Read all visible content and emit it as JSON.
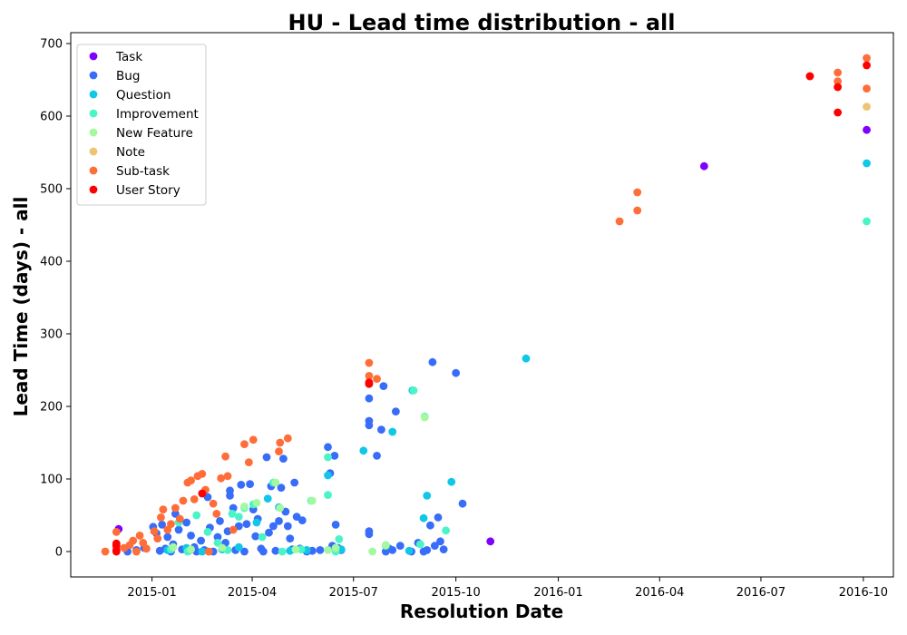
{
  "chart_data": {
    "type": "scatter",
    "title": "HU - Lead time distribution - all",
    "xlabel": "Resolution Date",
    "ylabel": "Lead Time (days) - all",
    "x_type": "date",
    "xlim": [
      "2014-10-20",
      "2016-10-28"
    ],
    "ylim": [
      -35,
      715
    ],
    "x_ticks": [
      "2015-01-01",
      "2015-04-01",
      "2015-07-01",
      "2015-10-01",
      "2016-01-01",
      "2016-04-01",
      "2016-07-01",
      "2016-10-01"
    ],
    "x_tick_labels": [
      "2015-01",
      "2015-04",
      "2015-07",
      "2015-10",
      "2016-01",
      "2016-04",
      "2016-07",
      "2016-10"
    ],
    "y_ticks": [
      0,
      100,
      200,
      300,
      400,
      500,
      600,
      700
    ],
    "y_tick_labels": [
      "0",
      "100",
      "200",
      "300",
      "400",
      "500",
      "600",
      "700"
    ],
    "grid": false,
    "legend_position": "top-left",
    "series": [
      {
        "name": "Task",
        "color": "#8000ff",
        "points": [
          [
            "2014-12-02",
            31
          ],
          [
            "2015-11-01",
            14
          ],
          [
            "2016-05-11",
            531
          ],
          [
            "2016-10-04",
            581
          ]
        ]
      },
      {
        "name": "Bug",
        "color": "#386df9",
        "points": [
          [
            "2014-12-10",
            0
          ],
          [
            "2014-12-18",
            2
          ],
          [
            "2014-12-25",
            5
          ],
          [
            "2015-01-02",
            34
          ],
          [
            "2015-01-05",
            25
          ],
          [
            "2015-01-08",
            1
          ],
          [
            "2015-01-10",
            37
          ],
          [
            "2015-01-13",
            4
          ],
          [
            "2015-01-15",
            20
          ],
          [
            "2015-01-18",
            0
          ],
          [
            "2015-01-20",
            10
          ],
          [
            "2015-01-22",
            52
          ],
          [
            "2015-01-25",
            30
          ],
          [
            "2015-01-28",
            3
          ],
          [
            "2015-02-01",
            40
          ],
          [
            "2015-02-03",
            1
          ],
          [
            "2015-02-05",
            22
          ],
          [
            "2015-02-08",
            6
          ],
          [
            "2015-02-10",
            0
          ],
          [
            "2015-02-14",
            15
          ],
          [
            "2015-02-17",
            2
          ],
          [
            "2015-02-20",
            75
          ],
          [
            "2015-02-22",
            33
          ],
          [
            "2015-02-25",
            0
          ],
          [
            "2015-03-01",
            20
          ],
          [
            "2015-03-03",
            42
          ],
          [
            "2015-03-06",
            5
          ],
          [
            "2015-03-08",
            12
          ],
          [
            "2015-03-10",
            28
          ],
          [
            "2015-03-12",
            77
          ],
          [
            "2015-03-12",
            84
          ],
          [
            "2015-03-15",
            60
          ],
          [
            "2015-03-17",
            2
          ],
          [
            "2015-03-20",
            35
          ],
          [
            "2015-03-22",
            92
          ],
          [
            "2015-03-25",
            0
          ],
          [
            "2015-03-27",
            38
          ],
          [
            "2015-03-30",
            93
          ],
          [
            "2015-04-02",
            58
          ],
          [
            "2015-04-04",
            21
          ],
          [
            "2015-04-06",
            45
          ],
          [
            "2015-04-09",
            4
          ],
          [
            "2015-04-11",
            0
          ],
          [
            "2015-04-14",
            130
          ],
          [
            "2015-04-16",
            26
          ],
          [
            "2015-04-18",
            90
          ],
          [
            "2015-04-20",
            35
          ],
          [
            "2015-04-22",
            1
          ],
          [
            "2015-04-25",
            42
          ],
          [
            "2015-04-27",
            88
          ],
          [
            "2015-04-29",
            128
          ],
          [
            "2015-05-01",
            55
          ],
          [
            "2015-05-03",
            35
          ],
          [
            "2015-05-05",
            18
          ],
          [
            "2015-05-07",
            3
          ],
          [
            "2015-05-09",
            95
          ],
          [
            "2015-05-11",
            48
          ],
          [
            "2015-05-14",
            4
          ],
          [
            "2015-05-16",
            43
          ],
          [
            "2015-05-20",
            0
          ],
          [
            "2015-05-25",
            1
          ],
          [
            "2015-06-01",
            2
          ],
          [
            "2015-06-08",
            144
          ],
          [
            "2015-06-10",
            108
          ],
          [
            "2015-06-12",
            8
          ],
          [
            "2015-06-14",
            132
          ],
          [
            "2015-06-15",
            37
          ],
          [
            "2015-06-17",
            5
          ],
          [
            "2015-06-20",
            2
          ],
          [
            "2015-07-15",
            28
          ],
          [
            "2015-07-15",
            24
          ],
          [
            "2015-07-15",
            180
          ],
          [
            "2015-07-15",
            174
          ],
          [
            "2015-07-15",
            211
          ],
          [
            "2015-07-22",
            132
          ],
          [
            "2015-07-26",
            168
          ],
          [
            "2015-07-28",
            228
          ],
          [
            "2015-07-30",
            0
          ],
          [
            "2015-08-02",
            4
          ],
          [
            "2015-08-05",
            2
          ],
          [
            "2015-08-08",
            193
          ],
          [
            "2015-08-12",
            8
          ],
          [
            "2015-08-22",
            0
          ],
          [
            "2015-08-28",
            12
          ],
          [
            "2015-09-02",
            0
          ],
          [
            "2015-09-05",
            2
          ],
          [
            "2015-09-08",
            36
          ],
          [
            "2015-09-10",
            261
          ],
          [
            "2015-09-12",
            8
          ],
          [
            "2015-09-15",
            47
          ],
          [
            "2015-09-17",
            14
          ],
          [
            "2015-09-20",
            3
          ],
          [
            "2015-10-01",
            246
          ],
          [
            "2015-10-07",
            66
          ]
        ]
      },
      {
        "name": "Question",
        "color": "#11c7e8",
        "points": [
          [
            "2015-01-15",
            2
          ],
          [
            "2015-02-01",
            5
          ],
          [
            "2015-02-15",
            0
          ],
          [
            "2015-03-05",
            3
          ],
          [
            "2015-03-20",
            6
          ],
          [
            "2015-04-05",
            40
          ],
          [
            "2015-04-15",
            73
          ],
          [
            "2015-04-25",
            61
          ],
          [
            "2015-05-05",
            1
          ],
          [
            "2015-05-20",
            2
          ],
          [
            "2015-06-08",
            105
          ],
          [
            "2015-06-20",
            3
          ],
          [
            "2015-07-10",
            139
          ],
          [
            "2015-08-05",
            165
          ],
          [
            "2015-08-20",
            1
          ],
          [
            "2015-08-23",
            222
          ],
          [
            "2015-09-02",
            46
          ],
          [
            "2015-09-05",
            77
          ],
          [
            "2015-09-27",
            96
          ],
          [
            "2015-12-03",
            266
          ],
          [
            "2016-10-04",
            535
          ]
        ]
      },
      {
        "name": "Improvement",
        "color": "#4bf4c8",
        "points": [
          [
            "2015-01-18",
            3
          ],
          [
            "2015-01-25",
            40
          ],
          [
            "2015-02-02",
            0
          ],
          [
            "2015-02-10",
            50
          ],
          [
            "2015-02-20",
            27
          ],
          [
            "2015-03-01",
            12
          ],
          [
            "2015-03-10",
            2
          ],
          [
            "2015-03-14",
            52
          ],
          [
            "2015-03-20",
            48
          ],
          [
            "2015-03-25",
            60
          ],
          [
            "2015-04-02",
            65
          ],
          [
            "2015-04-10",
            20
          ],
          [
            "2015-04-20",
            95
          ],
          [
            "2015-04-28",
            0
          ],
          [
            "2015-05-15",
            3
          ],
          [
            "2015-05-24",
            70
          ],
          [
            "2015-06-08",
            130
          ],
          [
            "2015-06-08",
            78
          ],
          [
            "2015-06-15",
            0
          ],
          [
            "2015-06-18",
            17
          ],
          [
            "2015-07-30",
            8
          ],
          [
            "2015-08-24",
            222
          ],
          [
            "2015-08-30",
            10
          ],
          [
            "2015-09-03",
            186
          ],
          [
            "2015-09-22",
            29
          ],
          [
            "2016-10-04",
            455
          ]
        ]
      },
      {
        "name": "New Feature",
        "color": "#a4f89f",
        "points": [
          [
            "2015-01-20",
            6
          ],
          [
            "2015-02-05",
            3
          ],
          [
            "2015-03-05",
            5
          ],
          [
            "2015-03-25",
            62
          ],
          [
            "2015-04-05",
            67
          ],
          [
            "2015-04-22",
            95
          ],
          [
            "2015-04-26",
            60
          ],
          [
            "2015-05-10",
            3
          ],
          [
            "2015-05-25",
            70
          ],
          [
            "2015-06-08",
            2
          ],
          [
            "2015-06-15",
            5
          ],
          [
            "2015-07-18",
            0
          ],
          [
            "2015-07-30",
            9
          ],
          [
            "2015-09-03",
            185
          ]
        ]
      },
      {
        "name": "Note",
        "color": "#edc472",
        "points": [
          [
            "2016-10-04",
            613
          ]
        ]
      },
      {
        "name": "Sub-task",
        "color": "#ff6d38",
        "points": [
          [
            "2014-11-20",
            0
          ],
          [
            "2014-11-30",
            27
          ],
          [
            "2014-12-07",
            5
          ],
          [
            "2014-12-12",
            9
          ],
          [
            "2014-12-15",
            15
          ],
          [
            "2014-12-18",
            0
          ],
          [
            "2014-12-21",
            22
          ],
          [
            "2014-12-24",
            12
          ],
          [
            "2014-12-27",
            4
          ],
          [
            "2015-01-03",
            28
          ],
          [
            "2015-01-06",
            18
          ],
          [
            "2015-01-09",
            47
          ],
          [
            "2015-01-11",
            58
          ],
          [
            "2015-01-15",
            30
          ],
          [
            "2015-01-18",
            38
          ],
          [
            "2015-01-22",
            60
          ],
          [
            "2015-01-26",
            45
          ],
          [
            "2015-01-29",
            70
          ],
          [
            "2015-02-02",
            95
          ],
          [
            "2015-02-05",
            98
          ],
          [
            "2015-02-08",
            72
          ],
          [
            "2015-02-11",
            104
          ],
          [
            "2015-02-15",
            107
          ],
          [
            "2015-02-18",
            85
          ],
          [
            "2015-02-21",
            0
          ],
          [
            "2015-02-25",
            66
          ],
          [
            "2015-02-28",
            52
          ],
          [
            "2015-03-04",
            101
          ],
          [
            "2015-03-08",
            131
          ],
          [
            "2015-03-10",
            104
          ],
          [
            "2015-03-15",
            30
          ],
          [
            "2015-03-25",
            148
          ],
          [
            "2015-03-29",
            123
          ],
          [
            "2015-04-02",
            154
          ],
          [
            "2015-04-25",
            138
          ],
          [
            "2015-04-26",
            150
          ],
          [
            "2015-05-03",
            156
          ],
          [
            "2015-07-15",
            260
          ],
          [
            "2015-07-15",
            242
          ],
          [
            "2015-07-15",
            231
          ],
          [
            "2015-07-22",
            238
          ],
          [
            "2016-02-25",
            455
          ],
          [
            "2016-03-12",
            495
          ],
          [
            "2016-03-12",
            470
          ],
          [
            "2016-08-14",
            655
          ],
          [
            "2016-09-08",
            660
          ],
          [
            "2016-09-08",
            648
          ],
          [
            "2016-10-04",
            680
          ],
          [
            "2016-10-04",
            638
          ]
        ]
      },
      {
        "name": "User Story",
        "color": "#ff0000",
        "points": [
          [
            "2014-11-30",
            11
          ],
          [
            "2014-11-30",
            8
          ],
          [
            "2014-11-30",
            2
          ],
          [
            "2014-11-30",
            0
          ],
          [
            "2015-02-15",
            80
          ],
          [
            "2015-07-15",
            233
          ],
          [
            "2015-07-15",
            231
          ],
          [
            "2016-08-14",
            655
          ],
          [
            "2016-09-08",
            640
          ],
          [
            "2016-09-08",
            605
          ],
          [
            "2016-10-04",
            670
          ]
        ]
      }
    ]
  }
}
